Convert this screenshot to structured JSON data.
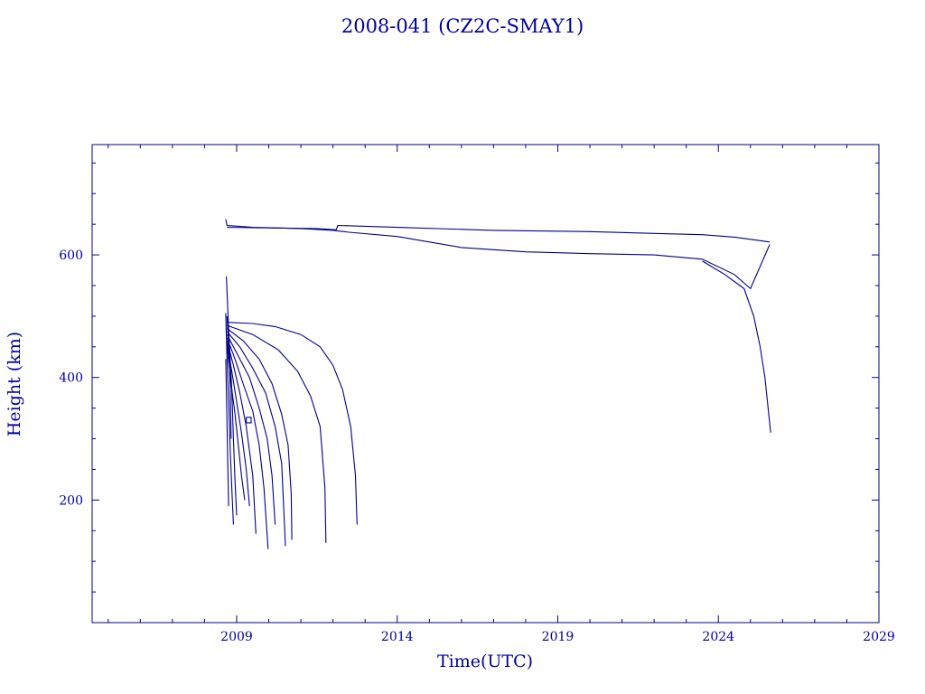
{
  "chart_data": {
    "type": "line",
    "title": "2008-041 (CZ2C-SMAY1)",
    "xlabel": "Time(UTC)",
    "ylabel": "Height (km)",
    "xlim": [
      2004.5,
      2029.0
    ],
    "ylim": [
      0,
      780
    ],
    "x_ticks": [
      2009,
      2014,
      2019,
      2024,
      2029
    ],
    "x_tick_labels": [
      "2009",
      "2014",
      "2019",
      "2024",
      "2029"
    ],
    "y_ticks": [
      200,
      400,
      600
    ],
    "y_tick_labels": [
      "200",
      "400",
      "600"
    ],
    "grid": false,
    "color": "#00008b",
    "series": [
      {
        "x": [
          2008.66,
          2008.7,
          2009.5,
          2011.0,
          2012.0,
          2012.5,
          2014.0,
          2016.0,
          2018.0,
          2020.0,
          2022.0,
          2023.5,
          2024.5,
          2025.0,
          2025.6
        ],
        "y": [
          658,
          648,
          645,
          643,
          640,
          637,
          630,
          612,
          605,
          602,
          600,
          593,
          568,
          545,
          617
        ]
      },
      {
        "x": [
          2008.7,
          2011.5,
          2012.1,
          2012.15,
          2014.0,
          2017.0,
          2020.0,
          2022.0,
          2023.5,
          2024.5,
          2025.2,
          2025.6
        ],
        "y": [
          645,
          643,
          641,
          648,
          645,
          640,
          638,
          635,
          633,
          629,
          624,
          621
        ]
      },
      {
        "x": [
          2023.5,
          2024.2,
          2024.8,
          2025.1,
          2025.3,
          2025.45,
          2025.55,
          2025.63
        ],
        "y": [
          590,
          568,
          545,
          500,
          450,
          400,
          350,
          310
        ]
      },
      {
        "x": [
          2008.7,
          2009.5,
          2010.2,
          2011.0,
          2011.6,
          2012.0,
          2012.3,
          2012.55,
          2012.7,
          2012.75
        ],
        "y": [
          490,
          488,
          483,
          470,
          450,
          420,
          380,
          320,
          240,
          160
        ]
      },
      {
        "x": [
          2008.7,
          2009.5,
          2010.3,
          2010.9,
          2011.3,
          2011.6,
          2011.75,
          2011.78
        ],
        "y": [
          485,
          470,
          445,
          410,
          370,
          320,
          220,
          130
        ]
      },
      {
        "x": [
          2008.7,
          2009.2,
          2009.7,
          2010.1,
          2010.4,
          2010.6,
          2010.7,
          2010.72
        ],
        "y": [
          480,
          460,
          430,
          390,
          340,
          290,
          210,
          135
        ]
      },
      {
        "x": [
          2008.7,
          2009.1,
          2009.5,
          2009.9,
          2010.2,
          2010.4,
          2010.52
        ],
        "y": [
          475,
          450,
          415,
          375,
          320,
          260,
          125
        ]
      },
      {
        "x": [
          2008.7,
          2009.0,
          2009.4,
          2009.7,
          2009.95,
          2010.1,
          2010.2
        ],
        "y": [
          470,
          440,
          400,
          350,
          300,
          240,
          160
        ]
      },
      {
        "x": [
          2008.7,
          2008.95,
          2009.2,
          2009.5,
          2009.7,
          2009.85,
          2009.98
        ],
        "y": [
          465,
          430,
          390,
          345,
          290,
          220,
          120
        ]
      },
      {
        "x": [
          2008.7,
          2008.9,
          2009.1,
          2009.3,
          2009.5,
          2009.6
        ],
        "y": [
          460,
          420,
          375,
          320,
          240,
          145
        ]
      },
      {
        "x": [
          2008.7,
          2008.85,
          2009.0,
          2009.15,
          2009.3,
          2009.4
        ],
        "y": [
          455,
          410,
          360,
          310,
          250,
          190
        ]
      },
      {
        "x": [
          2008.7,
          2008.8,
          2008.95,
          2009.05,
          2009.15,
          2009.25
        ],
        "y": [
          450,
          400,
          340,
          290,
          240,
          200
        ]
      },
      {
        "x": [
          2008.68,
          2008.75,
          2008.85,
          2008.9,
          2008.95,
          2009.0
        ],
        "y": [
          565,
          480,
          380,
          300,
          230,
          175
        ]
      },
      {
        "x": [
          2008.66,
          2008.7,
          2008.76,
          2008.8,
          2008.85,
          2008.9
        ],
        "y": [
          505,
          430,
          350,
          280,
          220,
          160
        ]
      },
      {
        "x": [
          2008.66,
          2008.69,
          2008.72,
          2008.75
        ],
        "y": [
          430,
          350,
          270,
          190
        ]
      },
      {
        "x": [
          2008.7,
          2008.75,
          2008.8,
          2008.83
        ],
        "y": [
          500,
          450,
          380,
          300
        ]
      },
      {
        "x": [
          2009.3,
          2009.45,
          2009.45,
          2009.3,
          2009.3
        ],
        "y": [
          335,
          335,
          326,
          326,
          335
        ]
      }
    ]
  }
}
